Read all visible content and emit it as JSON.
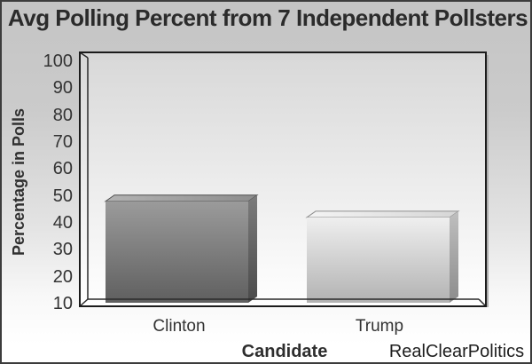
{
  "title": "Avg Polling Percent from 7 Independent Pollsters",
  "source": "RealClearPolitics",
  "chart_data": {
    "type": "bar",
    "title": "Avg Polling Percent from 7 Independent Pollsters",
    "categories": [
      "Clinton",
      "Trump"
    ],
    "values": [
      48,
      42
    ],
    "xlabel": "Candidate",
    "ylabel": "Percentage in Polls",
    "ylim": [
      10,
      100
    ],
    "yticks": [
      "100",
      "90",
      "80",
      "70",
      "60",
      "50",
      "40",
      "30",
      "20",
      "10"
    ],
    "grid": false,
    "legend": "none",
    "style": "3d-grayscale",
    "colors": {
      "clinton_bar": "#7d7d7d",
      "trump_bar": "#d2d2d2",
      "plot_bg_top": "#d8d8d8",
      "plot_bg_bottom": "#ffffff",
      "border": "#1c1c1c"
    },
    "attribution": "RealClearPolitics"
  }
}
